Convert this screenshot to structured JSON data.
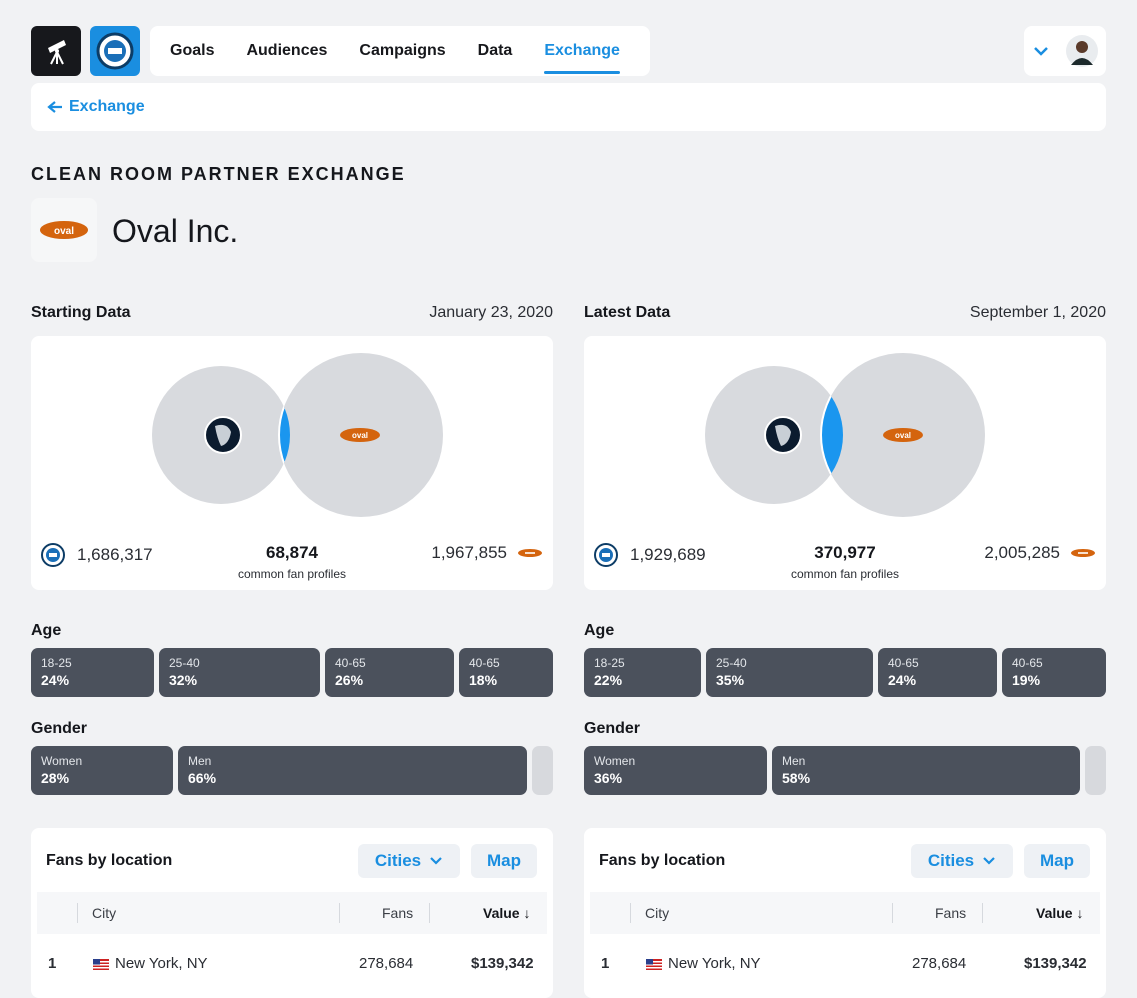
{
  "nav": {
    "items": [
      "Goals",
      "Audiences",
      "Campaigns",
      "Data",
      "Exchange"
    ],
    "active": "Exchange"
  },
  "breadcrumb": {
    "label": "Exchange"
  },
  "page": {
    "title": "CLEAN ROOM PARTNER EXCHANGE",
    "partner_name": "Oval Inc.",
    "partner_logo_text": "oval"
  },
  "starting": {
    "label": "Starting Data",
    "date": "January 23, 2020",
    "left_count": "1,686,317",
    "common_count": "68,874",
    "common_caption": "common fan profiles",
    "right_count": "1,967,855",
    "age_label": "Age",
    "age": [
      {
        "range": "18-25",
        "pct": "24%"
      },
      {
        "range": "25-40",
        "pct": "32%"
      },
      {
        "range": "40-65",
        "pct": "26%"
      },
      {
        "range": "40-65",
        "pct": "18%"
      }
    ],
    "gender_label": "Gender",
    "gender": [
      {
        "label": "Women",
        "pct": "28%"
      },
      {
        "label": "Men",
        "pct": "66%"
      }
    ],
    "location": {
      "title": "Fans by location",
      "cities_btn": "Cities",
      "map_btn": "Map",
      "headers": {
        "city": "City",
        "fans": "Fans",
        "value": "Value ↓"
      },
      "rows": [
        {
          "rank": "1",
          "city": "New York, NY",
          "fans": "278,684",
          "value": "$139,342"
        }
      ]
    }
  },
  "latest": {
    "label": "Latest Data",
    "date": "September 1, 2020",
    "left_count": "1,929,689",
    "common_count": "370,977",
    "common_caption": "common fan profiles",
    "right_count": "2,005,285",
    "age_label": "Age",
    "age": [
      {
        "range": "18-25",
        "pct": "22%"
      },
      {
        "range": "25-40",
        "pct": "35%"
      },
      {
        "range": "40-65",
        "pct": "24%"
      },
      {
        "range": "40-65",
        "pct": "19%"
      }
    ],
    "gender_label": "Gender",
    "gender": [
      {
        "label": "Women",
        "pct": "36%"
      },
      {
        "label": "Men",
        "pct": "58%"
      }
    ],
    "location": {
      "title": "Fans by location",
      "cities_btn": "Cities",
      "map_btn": "Map",
      "headers": {
        "city": "City",
        "fans": "Fans",
        "value": "Value ↓"
      },
      "rows": [
        {
          "rank": "1",
          "city": "New York, NY",
          "fans": "278,684",
          "value": "$139,342"
        }
      ]
    }
  },
  "colors": {
    "accent": "#1a8ee0",
    "segment": "#4b515c",
    "oval": "#d4640e",
    "venn": "#d8dade"
  }
}
